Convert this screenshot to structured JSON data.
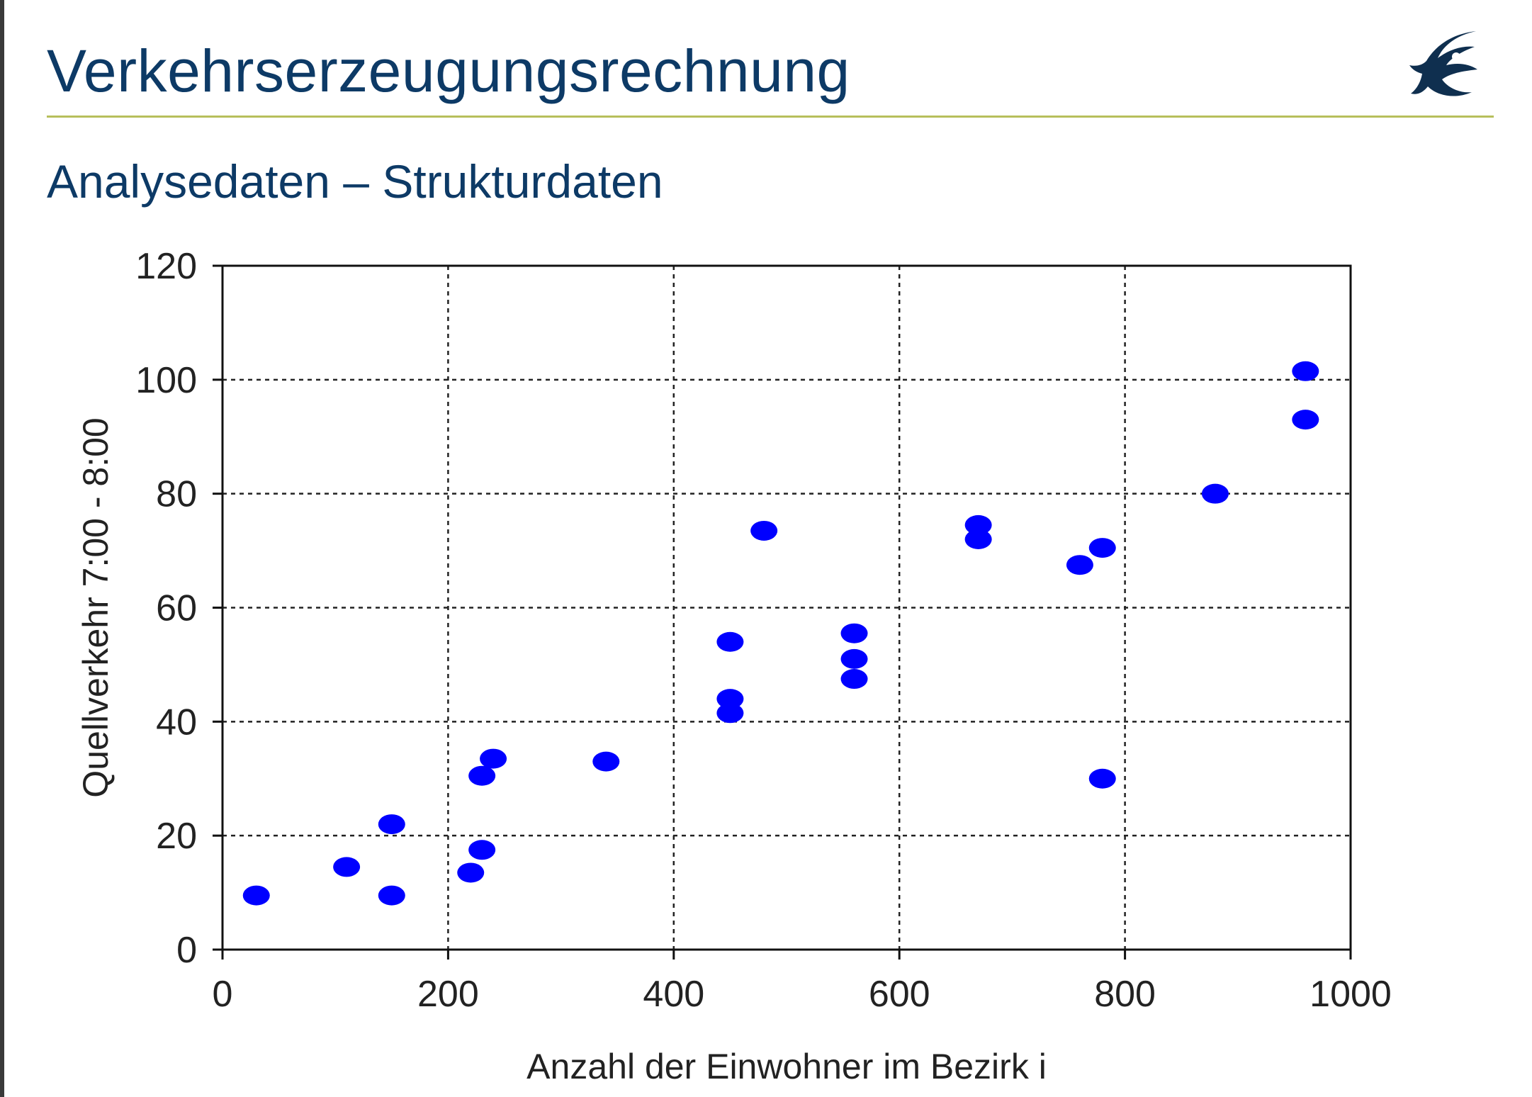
{
  "slide": {
    "title": "Verkehrserzeugungsrechnung",
    "subtitle": "Analysedaten – Strukturdaten",
    "logo_icon": "bird-logo-icon",
    "accent_color": "#0d3a66",
    "rule_color": "#b7bf5c"
  },
  "chart_data": {
    "type": "scatter",
    "xlabel": "Anzahl der Einwohner im Bezirk i",
    "ylabel": "Quellverkehr 7:00 - 8:00",
    "xlim": [
      0,
      1000
    ],
    "ylim": [
      0,
      120
    ],
    "xticks": [
      0,
      200,
      400,
      600,
      800,
      1000
    ],
    "yticks": [
      0,
      20,
      40,
      60,
      80,
      100,
      120
    ],
    "grid": true,
    "grid_style": "dotted",
    "marker_color": "#0000ff",
    "points": [
      {
        "x": 30,
        "y": 9.5
      },
      {
        "x": 110,
        "y": 14.5
      },
      {
        "x": 150,
        "y": 22
      },
      {
        "x": 150,
        "y": 9.5
      },
      {
        "x": 220,
        "y": 13.5
      },
      {
        "x": 230,
        "y": 17.5
      },
      {
        "x": 230,
        "y": 30.5
      },
      {
        "x": 240,
        "y": 33.5
      },
      {
        "x": 340,
        "y": 33
      },
      {
        "x": 450,
        "y": 54
      },
      {
        "x": 450,
        "y": 44
      },
      {
        "x": 450,
        "y": 41.5
      },
      {
        "x": 480,
        "y": 73.5
      },
      {
        "x": 560,
        "y": 55.5
      },
      {
        "x": 560,
        "y": 51
      },
      {
        "x": 560,
        "y": 47.5
      },
      {
        "x": 670,
        "y": 74.5
      },
      {
        "x": 670,
        "y": 72
      },
      {
        "x": 760,
        "y": 67.5
      },
      {
        "x": 780,
        "y": 70.5
      },
      {
        "x": 780,
        "y": 30
      },
      {
        "x": 880,
        "y": 80
      },
      {
        "x": 960,
        "y": 101.5
      },
      {
        "x": 960,
        "y": 93
      }
    ]
  }
}
